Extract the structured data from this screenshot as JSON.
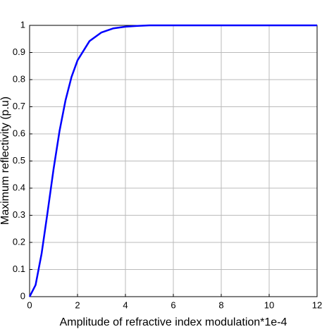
{
  "chart_data": {
    "type": "line",
    "x_label": "Amplitude of refractive index modulation*1e-4",
    "y_label": "Maximum reflectivity (p.u)",
    "x": [
      0,
      0.25,
      0.5,
      0.75,
      1,
      1.25,
      1.5,
      1.75,
      2,
      2.5,
      3,
      3.5,
      4,
      4.5,
      5,
      6,
      7,
      8,
      9,
      10,
      11,
      12
    ],
    "series": [
      {
        "color": "#0000ff",
        "values": [
          0,
          0.043,
          0.158,
          0.311,
          0.47,
          0.611,
          0.724,
          0.81,
          0.871,
          0.942,
          0.974,
          0.989,
          0.995,
          0.998,
          1,
          1,
          1,
          1,
          1,
          1,
          1,
          1
        ]
      }
    ],
    "xlim": [
      0,
      12
    ],
    "xticks": [
      0,
      2,
      4,
      6,
      8,
      10,
      12
    ],
    "ylim": [
      0,
      1
    ],
    "yticks": [
      0,
      0.1,
      0.2,
      0.3,
      0.4,
      0.5,
      0.6,
      0.7,
      0.8,
      0.9,
      1
    ],
    "grid": true
  }
}
